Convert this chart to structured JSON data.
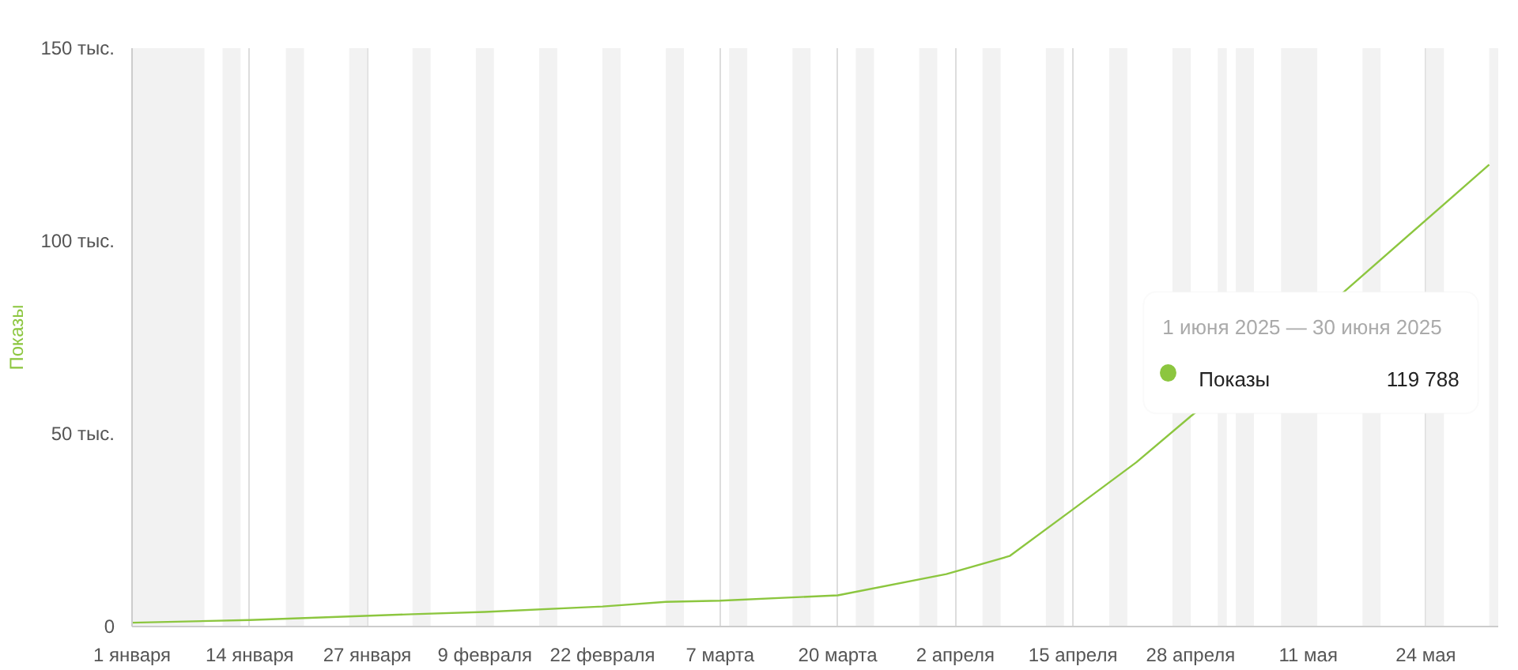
{
  "chart_data": {
    "type": "line",
    "ylabel": "Показы",
    "x": [
      "2025-01-01",
      "2025-01-14",
      "2025-02-01",
      "2025-02-09",
      "2025-02-22",
      "2025-03-01",
      "2025-03-07",
      "2025-03-20",
      "2025-04-01",
      "2025-04-08",
      "2025-04-15",
      "2025-04-22",
      "2025-04-28",
      "2025-05-15",
      "2025-05-31"
    ],
    "series": [
      {
        "name": "Показы",
        "color": "#8cc63f",
        "values": [
          1.0,
          1.7,
          3.2,
          3.8,
          5.2,
          6.4,
          6.7,
          8.1,
          13.6,
          18.3,
          30.4,
          42.6,
          54.5,
          86.9,
          119.788
        ]
      }
    ],
    "annotations": [
      "1 июня 2025 — 30 июня 2025",
      "119 788"
    ],
    "xlim": [
      "2025-01-01",
      "2025-06-01"
    ],
    "xticks": [
      {
        "value": "2025-01-01",
        "label": "1 января"
      },
      {
        "value": "2025-01-14",
        "label": "14 января"
      },
      {
        "value": "2025-01-27",
        "label": "27 января"
      },
      {
        "value": "2025-02-09",
        "label": "9 февраля"
      },
      {
        "value": "2025-02-22",
        "label": "22 февраля"
      },
      {
        "value": "2025-03-07",
        "label": "7 марта"
      },
      {
        "value": "2025-03-20",
        "label": "20 марта"
      },
      {
        "value": "2025-04-02",
        "label": "2 апреля"
      },
      {
        "value": "2025-04-15",
        "label": "15 апреля"
      },
      {
        "value": "2025-04-28",
        "label": "28 апреля"
      },
      {
        "value": "2025-05-11",
        "label": "11 мая"
      },
      {
        "value": "2025-05-24",
        "label": "24 мая"
      }
    ],
    "ylim": [
      0,
      150
    ],
    "yticks": [
      0,
      {
        "value": 50,
        "label": "50 тыс."
      },
      {
        "value": 100,
        "label": "100 тыс."
      },
      {
        "value": 150,
        "label": "150 тыс."
      }
    ],
    "grid": "x",
    "line_style": "solid",
    "bands": [
      {
        "axis": "x",
        "from": "2025-01-01",
        "to": "2025-01-09",
        "color": "#f2f2f2"
      },
      {
        "axis": "x",
        "from": "2025-01-11",
        "to": "2025-01-13",
        "color": "#f2f2f2"
      },
      {
        "axis": "x",
        "from": "2025-01-18",
        "to": "2025-01-20",
        "color": "#f2f2f2"
      },
      {
        "axis": "x",
        "from": "2025-01-25",
        "to": "2025-01-27",
        "color": "#f2f2f2"
      },
      {
        "axis": "x",
        "from": "2025-02-01",
        "to": "2025-02-03",
        "color": "#f2f2f2"
      },
      {
        "axis": "x",
        "from": "2025-02-08",
        "to": "2025-02-10",
        "color": "#f2f2f2"
      },
      {
        "axis": "x",
        "from": "2025-02-15",
        "to": "2025-02-17",
        "color": "#f2f2f2"
      },
      {
        "axis": "x",
        "from": "2025-02-22",
        "to": "2025-02-24",
        "color": "#f2f2f2"
      },
      {
        "axis": "x",
        "from": "2025-03-01",
        "to": "2025-03-03",
        "color": "#f2f2f2"
      },
      {
        "axis": "x",
        "from": "2025-03-08",
        "to": "2025-03-10",
        "color": "#f2f2f2"
      },
      {
        "axis": "x",
        "from": "2025-03-15",
        "to": "2025-03-17",
        "color": "#f2f2f2"
      },
      {
        "axis": "x",
        "from": "2025-03-22",
        "to": "2025-03-24",
        "color": "#f2f2f2"
      },
      {
        "axis": "x",
        "from": "2025-03-29",
        "to": "2025-03-31",
        "color": "#f2f2f2"
      },
      {
        "axis": "x",
        "from": "2025-04-05",
        "to": "2025-04-07",
        "color": "#f2f2f2"
      },
      {
        "axis": "x",
        "from": "2025-04-12",
        "to": "2025-04-14",
        "color": "#f2f2f2"
      },
      {
        "axis": "x",
        "from": "2025-04-19",
        "to": "2025-04-21",
        "color": "#f2f2f2"
      },
      {
        "axis": "x",
        "from": "2025-04-26",
        "to": "2025-04-28",
        "color": "#f2f2f2"
      },
      {
        "axis": "x",
        "from": "2025-05-01",
        "to": "2025-05-02",
        "color": "#f2f2f2"
      },
      {
        "axis": "x",
        "from": "2025-05-03",
        "to": "2025-05-05",
        "color": "#f2f2f2"
      },
      {
        "axis": "x",
        "from": "2025-05-08",
        "to": "2025-05-12",
        "color": "#f2f2f2"
      },
      {
        "axis": "x",
        "from": "2025-05-17",
        "to": "2025-05-19",
        "color": "#f2f2f2"
      },
      {
        "axis": "x",
        "from": "2025-05-24",
        "to": "2025-05-26",
        "color": "#f2f2f2"
      },
      {
        "axis": "x",
        "from": "2025-05-31",
        "to": "2025-06-01",
        "color": "#f2f2f2"
      }
    ]
  }
}
